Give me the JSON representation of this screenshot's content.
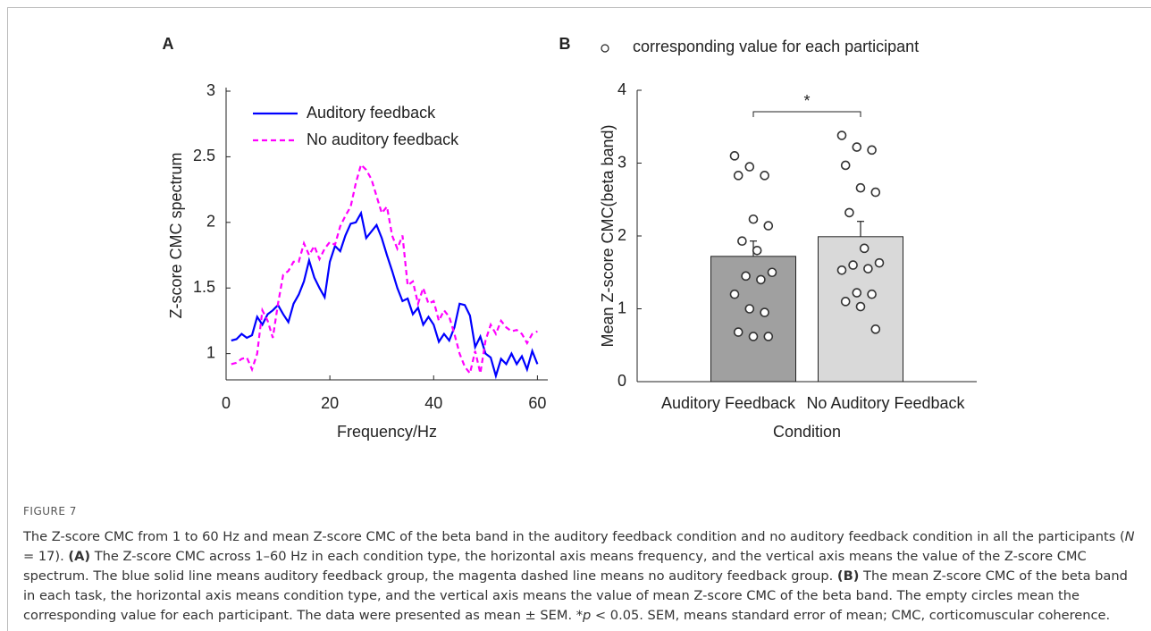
{
  "chart_data": [
    {
      "type": "line",
      "panel": "A",
      "xlabel": "Frequency/Hz",
      "ylabel": "Z-score CMC spectrum",
      "x": [
        1,
        2,
        3,
        4,
        5,
        6,
        7,
        8,
        9,
        10,
        11,
        12,
        13,
        14,
        15,
        16,
        17,
        18,
        19,
        20,
        21,
        22,
        23,
        24,
        25,
        26,
        27,
        28,
        29,
        30,
        31,
        32,
        33,
        34,
        35,
        36,
        37,
        38,
        39,
        40,
        41,
        42,
        43,
        44,
        45,
        46,
        47,
        48,
        49,
        50,
        51,
        52,
        53,
        54,
        55,
        56,
        57,
        58,
        59,
        60
      ],
      "series": [
        {
          "name": "Auditory feedback",
          "color": "#0000ff",
          "dash": false,
          "values": [
            1.1,
            1.11,
            1.15,
            1.12,
            1.14,
            1.28,
            1.22,
            1.3,
            1.33,
            1.37,
            1.3,
            1.24,
            1.38,
            1.45,
            1.55,
            1.71,
            1.58,
            1.5,
            1.43,
            1.7,
            1.82,
            1.78,
            1.9,
            1.99,
            2.0,
            2.07,
            1.88,
            1.93,
            1.98,
            1.88,
            1.75,
            1.63,
            1.5,
            1.4,
            1.42,
            1.3,
            1.35,
            1.22,
            1.28,
            1.22,
            1.09,
            1.15,
            1.1,
            1.2,
            1.38,
            1.37,
            1.29,
            1.05,
            1.13,
            1.0,
            0.97,
            0.83,
            0.96,
            0.92,
            1.0,
            0.92,
            0.98,
            0.88,
            1.02,
            0.92
          ]
        },
        {
          "name": "No auditory feedback",
          "color": "#ff00ff",
          "dash": true,
          "values": [
            0.92,
            0.93,
            0.96,
            0.97,
            0.88,
            1.0,
            1.33,
            1.25,
            1.12,
            1.38,
            1.6,
            1.63,
            1.7,
            1.7,
            1.84,
            1.75,
            1.82,
            1.72,
            1.8,
            1.85,
            1.83,
            1.97,
            2.05,
            2.12,
            2.3,
            2.44,
            2.4,
            2.33,
            2.2,
            2.07,
            2.12,
            1.9,
            1.8,
            1.9,
            1.52,
            1.55,
            1.38,
            1.5,
            1.38,
            1.4,
            1.25,
            1.33,
            1.28,
            1.15,
            1.0,
            0.9,
            0.85,
            1.02,
            0.85,
            1.1,
            1.22,
            1.15,
            1.25,
            1.2,
            1.17,
            1.18,
            1.15,
            1.08,
            1.15,
            1.17
          ]
        }
      ],
      "xlim": [
        0,
        62
      ],
      "xticks": [
        0,
        20,
        40,
        60
      ],
      "ylim": [
        0.8,
        3
      ],
      "yticks": [
        1,
        1.5,
        2,
        2.5,
        3
      ],
      "legend": "top-left"
    },
    {
      "type": "bar",
      "panel": "B",
      "xlabel": "Condition",
      "ylabel": "Mean Z-score CMC(beta band)",
      "categories": [
        "Auditory Feedback",
        "No Auditory Feedback"
      ],
      "values": [
        1.72,
        1.99
      ],
      "errors": [
        0.21,
        0.21
      ],
      "colors": [
        "#a0a0a0",
        "#d9d9d9"
      ],
      "points_label": "corresponding value for each participant",
      "points": [
        [
          3.1,
          2.95,
          2.83,
          2.83,
          2.23,
          2.14,
          1.93,
          1.8,
          1.5,
          1.45,
          1.4,
          1.2,
          1.0,
          0.95,
          0.68,
          0.62,
          0.62
        ],
        [
          3.38,
          3.22,
          3.18,
          2.97,
          2.66,
          2.6,
          2.32,
          1.83,
          1.63,
          1.6,
          1.55,
          1.53,
          1.22,
          1.2,
          1.1,
          1.03,
          0.72
        ]
      ],
      "significance": "*",
      "ylim": [
        0,
        4
      ],
      "yticks": [
        0,
        1,
        2,
        3,
        4
      ]
    }
  ],
  "figure": {
    "label": "FIGURE 7",
    "caption": [
      "The Z-score CMC from 1 to 60 Hz and mean Z-score CMC of the beta band in the auditory feedback condition and no auditory feedback condition in all the participants (",
      "N",
      " = 17). ",
      "(A)",
      " The Z-score CMC across 1–60 Hz in each condition type, the horizontal axis means frequency, and the vertical axis means the value of the Z-score CMC spectrum. The blue solid line means auditory feedback group, the magenta dashed line means no auditory feedback group. ",
      "(B)",
      " The mean Z-score CMC of the beta band in each task, the horizontal axis means condition type, and the vertical axis means the value of mean Z-score CMC of the beta band. The empty circles mean the corresponding value for each participant. The data were presented as mean ± SEM. *",
      "p",
      " < 0.05. SEM, means standard error of mean; CMC, corticomuscular coherence."
    ]
  }
}
